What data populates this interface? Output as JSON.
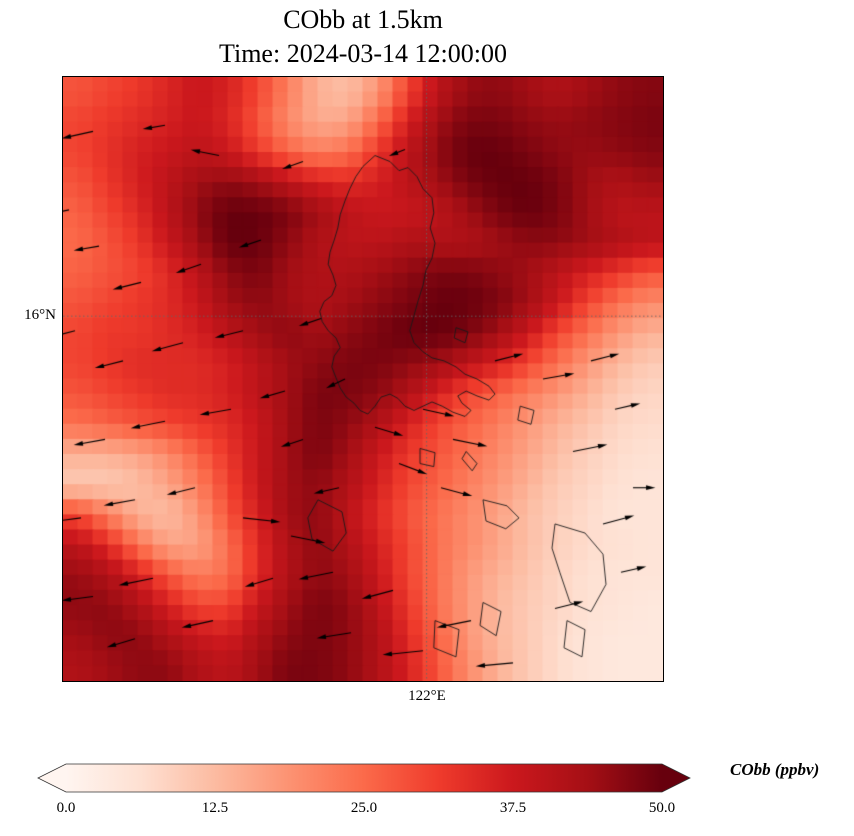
{
  "title": {
    "line1": "CObb at 1.5km",
    "line2": "Time: 2024-03-14 12:00:00"
  },
  "axes": {
    "y_tick_label": "16°N",
    "x_tick_label": "122°E",
    "y_tick_frac": 0.396,
    "x_tick_frac": 0.606
  },
  "colorbar": {
    "label": "CObb (ppbv)",
    "ticks": [
      "0.0",
      "12.5",
      "25.0",
      "37.5",
      "50.0"
    ],
    "min": 0,
    "max": 50,
    "extend": "both"
  },
  "chart_data": {
    "type": "heatmap",
    "title": "CObb at 1.5km",
    "subtitle": "Time: 2024-03-14 12:00:00",
    "variable": "CObb",
    "units": "ppbv",
    "vmin": 0,
    "vmax": 50,
    "colormap": "Reds",
    "colormap_stops": [
      [
        0.0,
        "#fff5f0"
      ],
      [
        0.125,
        "#fee0d2"
      ],
      [
        0.25,
        "#fcbba1"
      ],
      [
        0.375,
        "#fc9272"
      ],
      [
        0.5,
        "#fb6a4a"
      ],
      [
        0.625,
        "#ef3b2c"
      ],
      [
        0.75,
        "#cb181d"
      ],
      [
        0.875,
        "#a50f15"
      ],
      [
        1.0,
        "#67000d"
      ]
    ],
    "gridlines": {
      "lat": "16°N",
      "lon": "122°E"
    },
    "grid_shape": [
      20,
      20
    ],
    "grid": [
      [
        28,
        30,
        32,
        35,
        38,
        36,
        30,
        22,
        14,
        12,
        18,
        30,
        40,
        45,
        46,
        44,
        42,
        44,
        46,
        47
      ],
      [
        30,
        32,
        34,
        36,
        38,
        35,
        28,
        20,
        15,
        16,
        25,
        36,
        44,
        48,
        48,
        46,
        45,
        46,
        47,
        48
      ],
      [
        30,
        33,
        36,
        38,
        40,
        38,
        32,
        26,
        22,
        24,
        32,
        40,
        46,
        50,
        50,
        48,
        46,
        45,
        46,
        47
      ],
      [
        28,
        32,
        36,
        40,
        44,
        46,
        44,
        40,
        36,
        34,
        36,
        40,
        44,
        48,
        50,
        50,
        48,
        44,
        42,
        44
      ],
      [
        26,
        30,
        34,
        40,
        46,
        50,
        50,
        48,
        44,
        40,
        38,
        38,
        40,
        44,
        48,
        50,
        48,
        44,
        40,
        40
      ],
      [
        25,
        28,
        32,
        38,
        44,
        50,
        50,
        46,
        42,
        40,
        40,
        42,
        42,
        42,
        44,
        46,
        46,
        44,
        42,
        40
      ],
      [
        26,
        28,
        30,
        34,
        40,
        46,
        48,
        44,
        42,
        42,
        44,
        46,
        48,
        48,
        46,
        44,
        40,
        36,
        32,
        28
      ],
      [
        28,
        30,
        32,
        34,
        38,
        44,
        46,
        44,
        42,
        44,
        46,
        48,
        50,
        50,
        48,
        44,
        38,
        30,
        24,
        20
      ],
      [
        30,
        32,
        32,
        34,
        36,
        40,
        44,
        46,
        44,
        46,
        48,
        50,
        50,
        48,
        44,
        38,
        30,
        24,
        18,
        14
      ],
      [
        30,
        32,
        34,
        34,
        34,
        36,
        40,
        44,
        46,
        48,
        48,
        46,
        44,
        40,
        36,
        30,
        24,
        18,
        13,
        10
      ],
      [
        28,
        30,
        32,
        34,
        34,
        36,
        40,
        44,
        48,
        48,
        46,
        42,
        36,
        30,
        26,
        22,
        18,
        14,
        10,
        8
      ],
      [
        24,
        26,
        28,
        30,
        32,
        34,
        38,
        44,
        48,
        46,
        42,
        36,
        30,
        26,
        22,
        18,
        14,
        11,
        8,
        7
      ],
      [
        14,
        14,
        16,
        20,
        26,
        32,
        38,
        44,
        48,
        44,
        38,
        32,
        28,
        24,
        20,
        16,
        12,
        9,
        7,
        6
      ],
      [
        10,
        10,
        12,
        16,
        22,
        30,
        38,
        44,
        46,
        42,
        36,
        30,
        26,
        22,
        18,
        14,
        10,
        8,
        6,
        5
      ],
      [
        30,
        22,
        14,
        12,
        18,
        28,
        36,
        44,
        46,
        40,
        34,
        28,
        24,
        20,
        16,
        12,
        9,
        7,
        5,
        5
      ],
      [
        40,
        34,
        24,
        16,
        16,
        24,
        34,
        42,
        46,
        42,
        36,
        30,
        24,
        20,
        16,
        12,
        9,
        7,
        6,
        5
      ],
      [
        45,
        42,
        36,
        28,
        22,
        24,
        34,
        42,
        46,
        44,
        38,
        30,
        24,
        18,
        14,
        11,
        8,
        6,
        5,
        5
      ],
      [
        46,
        46,
        42,
        36,
        30,
        30,
        38,
        44,
        48,
        46,
        40,
        32,
        24,
        18,
        13,
        10,
        8,
        6,
        5,
        4
      ],
      [
        44,
        46,
        46,
        42,
        38,
        36,
        42,
        46,
        48,
        46,
        42,
        34,
        26,
        18,
        13,
        10,
        7,
        5,
        4,
        4
      ],
      [
        42,
        44,
        46,
        46,
        42,
        40,
        44,
        48,
        48,
        46,
        42,
        36,
        28,
        20,
        14,
        10,
        7,
        5,
        4,
        4
      ]
    ],
    "quiver": [
      [
        0.05,
        0.09,
        -0.045,
        0.01
      ],
      [
        0.17,
        0.08,
        -0.03,
        0.005
      ],
      [
        0.26,
        0.13,
        -0.04,
        -0.008
      ],
      [
        0.4,
        0.14,
        -0.028,
        0.01
      ],
      [
        0.57,
        0.12,
        -0.02,
        0.008
      ],
      [
        0.01,
        0.22,
        -0.025,
        0.005
      ],
      [
        0.06,
        0.28,
        -0.035,
        0.006
      ],
      [
        0.13,
        0.34,
        -0.04,
        0.01
      ],
      [
        0.23,
        0.31,
        -0.035,
        0.012
      ],
      [
        0.33,
        0.27,
        -0.03,
        0.01
      ],
      [
        0.02,
        0.42,
        -0.03,
        0.008
      ],
      [
        0.1,
        0.47,
        -0.04,
        0.01
      ],
      [
        0.2,
        0.44,
        -0.045,
        0.012
      ],
      [
        0.3,
        0.42,
        -0.04,
        0.01
      ],
      [
        0.43,
        0.4,
        -0.03,
        0.01
      ],
      [
        0.07,
        0.6,
        -0.045,
        0.008
      ],
      [
        0.17,
        0.57,
        -0.05,
        0.01
      ],
      [
        0.28,
        0.55,
        -0.045,
        0.008
      ],
      [
        0.37,
        0.52,
        -0.035,
        0.01
      ],
      [
        0.47,
        0.5,
        -0.025,
        0.012
      ],
      [
        0.03,
        0.73,
        -0.04,
        0.005
      ],
      [
        0.12,
        0.7,
        -0.045,
        0.008
      ],
      [
        0.22,
        0.68,
        -0.04,
        0.01
      ],
      [
        0.4,
        0.6,
        -0.03,
        0.01
      ],
      [
        0.46,
        0.68,
        -0.035,
        0.008
      ],
      [
        0.05,
        0.86,
        -0.045,
        0.006
      ],
      [
        0.15,
        0.83,
        -0.05,
        0.01
      ],
      [
        0.52,
        0.58,
        0.04,
        0.012
      ],
      [
        0.6,
        0.55,
        0.045,
        0.01
      ],
      [
        0.56,
        0.64,
        0.04,
        0.015
      ],
      [
        0.65,
        0.6,
        0.05,
        0.01
      ],
      [
        0.63,
        0.68,
        0.045,
        0.012
      ],
      [
        0.72,
        0.47,
        0.04,
        -0.01
      ],
      [
        0.8,
        0.5,
        0.045,
        -0.008
      ],
      [
        0.88,
        0.47,
        0.04,
        -0.01
      ],
      [
        0.92,
        0.55,
        0.035,
        -0.008
      ],
      [
        0.85,
        0.62,
        0.05,
        -0.01
      ],
      [
        0.95,
        0.68,
        0.03,
        0.0
      ],
      [
        0.9,
        0.74,
        0.045,
        -0.012
      ],
      [
        0.3,
        0.73,
        0.055,
        0.006
      ],
      [
        0.38,
        0.76,
        0.05,
        0.01
      ],
      [
        0.35,
        0.83,
        -0.04,
        0.012
      ],
      [
        0.45,
        0.82,
        -0.05,
        0.01
      ],
      [
        0.55,
        0.85,
        -0.045,
        0.012
      ],
      [
        0.48,
        0.92,
        -0.05,
        0.008
      ],
      [
        0.6,
        0.95,
        -0.06,
        0.006
      ],
      [
        0.68,
        0.9,
        -0.05,
        0.01
      ],
      [
        0.25,
        0.9,
        -0.045,
        0.01
      ],
      [
        0.12,
        0.93,
        -0.04,
        0.012
      ],
      [
        0.75,
        0.97,
        -0.055,
        0.005
      ],
      [
        0.82,
        0.88,
        0.04,
        -0.01
      ],
      [
        0.93,
        0.82,
        0.035,
        -0.008
      ]
    ],
    "coastline": [
      [
        [
          0.52,
          0.13
        ],
        [
          0.545,
          0.14
        ],
        [
          0.56,
          0.155
        ],
        [
          0.575,
          0.15
        ],
        [
          0.59,
          0.165
        ],
        [
          0.6,
          0.185
        ],
        [
          0.615,
          0.2
        ],
        [
          0.618,
          0.225
        ],
        [
          0.612,
          0.25
        ],
        [
          0.62,
          0.275
        ],
        [
          0.615,
          0.3
        ],
        [
          0.605,
          0.32
        ],
        [
          0.6,
          0.345
        ],
        [
          0.592,
          0.37
        ],
        [
          0.585,
          0.395
        ],
        [
          0.578,
          0.42
        ],
        [
          0.585,
          0.44
        ],
        [
          0.6,
          0.455
        ],
        [
          0.615,
          0.465
        ],
        [
          0.635,
          0.47
        ],
        [
          0.655,
          0.48
        ],
        [
          0.67,
          0.492
        ],
        [
          0.69,
          0.5
        ],
        [
          0.71,
          0.512
        ],
        [
          0.72,
          0.525
        ],
        [
          0.71,
          0.535
        ],
        [
          0.69,
          0.528
        ],
        [
          0.672,
          0.52
        ],
        [
          0.658,
          0.528
        ],
        [
          0.665,
          0.54
        ],
        [
          0.68,
          0.552
        ],
        [
          0.67,
          0.562
        ],
        [
          0.65,
          0.555
        ],
        [
          0.632,
          0.545
        ],
        [
          0.615,
          0.538
        ],
        [
          0.6,
          0.545
        ],
        [
          0.585,
          0.552
        ],
        [
          0.57,
          0.545
        ],
        [
          0.558,
          0.532
        ],
        [
          0.545,
          0.525
        ],
        [
          0.53,
          0.53
        ],
        [
          0.52,
          0.545
        ],
        [
          0.508,
          0.558
        ],
        [
          0.495,
          0.552
        ],
        [
          0.485,
          0.54
        ],
        [
          0.472,
          0.53
        ],
        [
          0.462,
          0.515
        ],
        [
          0.455,
          0.498
        ],
        [
          0.448,
          0.48
        ],
        [
          0.452,
          0.462
        ],
        [
          0.462,
          0.448
        ],
        [
          0.455,
          0.432
        ],
        [
          0.442,
          0.42
        ],
        [
          0.432,
          0.405
        ],
        [
          0.428,
          0.388
        ],
        [
          0.435,
          0.372
        ],
        [
          0.448,
          0.362
        ],
        [
          0.455,
          0.345
        ],
        [
          0.45,
          0.328
        ],
        [
          0.442,
          0.31
        ],
        [
          0.445,
          0.29
        ],
        [
          0.452,
          0.27
        ],
        [
          0.458,
          0.25
        ],
        [
          0.462,
          0.228
        ],
        [
          0.47,
          0.205
        ],
        [
          0.478,
          0.185
        ],
        [
          0.488,
          0.165
        ],
        [
          0.5,
          0.148
        ],
        [
          0.52,
          0.13
        ]
      ],
      [
        [
          0.655,
          0.415
        ],
        [
          0.675,
          0.422
        ],
        [
          0.67,
          0.44
        ],
        [
          0.652,
          0.432
        ],
        [
          0.655,
          0.415
        ]
      ],
      [
        [
          0.425,
          0.7
        ],
        [
          0.465,
          0.72
        ],
        [
          0.472,
          0.755
        ],
        [
          0.45,
          0.785
        ],
        [
          0.415,
          0.765
        ],
        [
          0.408,
          0.73
        ],
        [
          0.425,
          0.7
        ]
      ],
      [
        [
          0.595,
          0.615
        ],
        [
          0.62,
          0.622
        ],
        [
          0.618,
          0.645
        ],
        [
          0.595,
          0.64
        ],
        [
          0.595,
          0.615
        ]
      ],
      [
        [
          0.762,
          0.545
        ],
        [
          0.785,
          0.552
        ],
        [
          0.78,
          0.575
        ],
        [
          0.758,
          0.568
        ],
        [
          0.762,
          0.545
        ]
      ],
      [
        [
          0.672,
          0.62
        ],
        [
          0.69,
          0.64
        ],
        [
          0.682,
          0.652
        ],
        [
          0.665,
          0.632
        ],
        [
          0.672,
          0.62
        ]
      ],
      [
        [
          0.7,
          0.7
        ],
        [
          0.74,
          0.71
        ],
        [
          0.76,
          0.73
        ],
        [
          0.738,
          0.748
        ],
        [
          0.705,
          0.735
        ],
        [
          0.7,
          0.7
        ]
      ],
      [
        [
          0.82,
          0.74
        ],
        [
          0.87,
          0.755
        ],
        [
          0.9,
          0.79
        ],
        [
          0.905,
          0.84
        ],
        [
          0.88,
          0.885
        ],
        [
          0.845,
          0.87
        ],
        [
          0.828,
          0.82
        ],
        [
          0.815,
          0.78
        ],
        [
          0.82,
          0.74
        ]
      ],
      [
        [
          0.84,
          0.9
        ],
        [
          0.87,
          0.915
        ],
        [
          0.865,
          0.96
        ],
        [
          0.835,
          0.945
        ],
        [
          0.84,
          0.9
        ]
      ],
      [
        [
          0.62,
          0.9
        ],
        [
          0.66,
          0.915
        ],
        [
          0.655,
          0.96
        ],
        [
          0.618,
          0.945
        ],
        [
          0.62,
          0.9
        ]
      ],
      [
        [
          0.7,
          0.87
        ],
        [
          0.73,
          0.885
        ],
        [
          0.722,
          0.925
        ],
        [
          0.695,
          0.908
        ],
        [
          0.7,
          0.87
        ]
      ]
    ]
  }
}
